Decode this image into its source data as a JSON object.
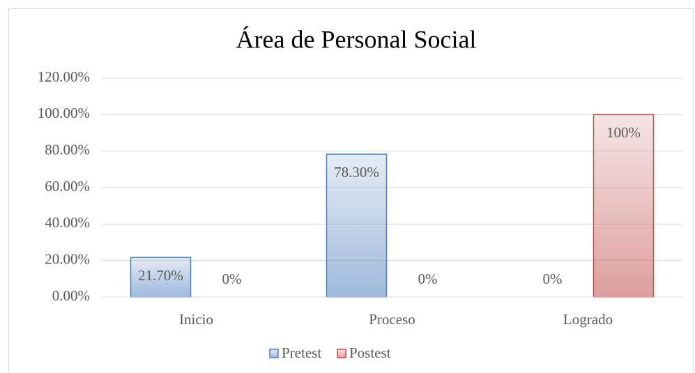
{
  "chart_data": {
    "type": "bar",
    "title": "Área de Personal Social",
    "categories": [
      "Inicio",
      "Proceso",
      "Logrado"
    ],
    "series": [
      {
        "name": "Pretest",
        "color": "#4f81bd",
        "values": [
          21.7,
          78.3,
          0
        ],
        "value_labels": [
          "21.70%",
          "78.30%",
          "0%"
        ]
      },
      {
        "name": "Postest",
        "color": "#c0504d",
        "values": [
          0,
          0,
          100
        ],
        "value_labels": [
          "0%",
          "0%",
          "100%"
        ]
      }
    ],
    "ylim": [
      0,
      120
    ],
    "yticks": [
      {
        "value": 0,
        "label": "0.00%"
      },
      {
        "value": 20,
        "label": "20.00%"
      },
      {
        "value": 40,
        "label": "40.00%"
      },
      {
        "value": 60,
        "label": "60.00%"
      },
      {
        "value": 80,
        "label": "80.00%"
      },
      {
        "value": 100,
        "label": "100.00%"
      },
      {
        "value": 120,
        "label": "120.00%"
      }
    ],
    "grid": true,
    "legend": "bottom"
  }
}
